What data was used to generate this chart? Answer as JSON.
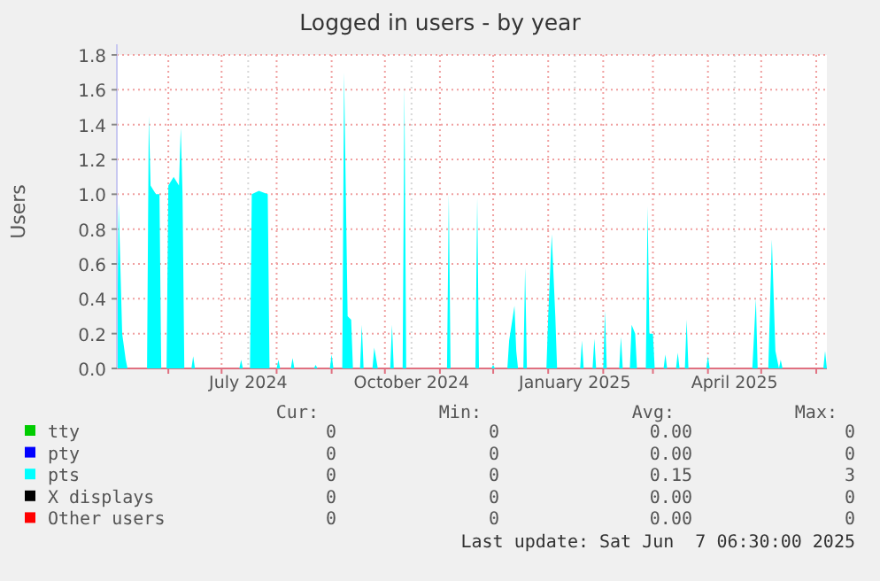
{
  "chart_data": {
    "type": "area",
    "title": "Logged in users - by year",
    "ylabel": "Users",
    "xlim": [
      "2024-05-03",
      "2025-06-07"
    ],
    "xticks": [
      {
        "value": "2024-06-01",
        "label": null
      },
      {
        "value": "2024-07-01",
        "label": null
      },
      {
        "value": "2024-07-16",
        "label": "July 2024"
      },
      {
        "value": "2024-08-01",
        "label": null
      },
      {
        "value": "2024-09-01",
        "label": null
      },
      {
        "value": "2024-10-01",
        "label": null
      },
      {
        "value": "2024-10-16",
        "label": "October 2024"
      },
      {
        "value": "2024-11-01",
        "label": null
      },
      {
        "value": "2024-12-01",
        "label": null
      },
      {
        "value": "2025-01-01",
        "label": null
      },
      {
        "value": "2025-01-16",
        "label": "January 2025"
      },
      {
        "value": "2025-02-01",
        "label": null
      },
      {
        "value": "2025-03-01",
        "label": null
      },
      {
        "value": "2025-04-01",
        "label": null
      },
      {
        "value": "2025-04-16",
        "label": "April 2025"
      },
      {
        "value": "2025-05-01",
        "label": null
      },
      {
        "value": "2025-06-01",
        "label": null
      }
    ],
    "ylim": [
      0,
      1.8
    ],
    "yticks": [
      {
        "value": 0,
        "label": "0.0"
      },
      {
        "value": 0.2,
        "label": "0.2"
      },
      {
        "value": 0.4,
        "label": "0.4"
      },
      {
        "value": 0.6,
        "label": "0.6"
      },
      {
        "value": 0.8,
        "label": "0.8"
      },
      {
        "value": 1,
        "label": "1.0"
      },
      {
        "value": 1.2,
        "label": "1.2"
      },
      {
        "value": 1.4,
        "label": "1.4"
      },
      {
        "value": 1.6,
        "label": "1.6"
      },
      {
        "value": 1.8,
        "label": "1.8"
      }
    ],
    "grid": true,
    "legend": "bottom",
    "series": [
      {
        "name": "tty",
        "color": "#00cc00"
      },
      {
        "name": "pty",
        "color": "#0000ff"
      },
      {
        "name": "pts",
        "color": "#00ffff",
        "x": [
          "2024-05-03",
          "2024-05-04",
          "2024-05-06",
          "2024-05-08",
          "2024-05-09",
          "2024-05-20",
          "2024-05-21",
          "2024-05-22",
          "2024-05-25",
          "2024-05-27",
          "2024-05-28",
          "2024-05-31",
          "2024-06-01",
          "2024-06-04",
          "2024-06-07",
          "2024-06-08",
          "2024-06-09",
          "2024-06-10",
          "2024-06-14",
          "2024-06-15",
          "2024-06-16",
          "2024-07-11",
          "2024-07-12",
          "2024-07-13",
          "2024-07-17",
          "2024-07-18",
          "2024-07-22",
          "2024-07-27",
          "2024-07-28",
          "2024-08-01",
          "2024-08-02",
          "2024-08-03",
          "2024-08-09",
          "2024-08-10",
          "2024-08-11",
          "2024-08-22",
          "2024-08-23",
          "2024-08-24",
          "2024-08-31",
          "2024-09-01",
          "2024-09-02",
          "2024-09-07",
          "2024-09-08",
          "2024-09-10",
          "2024-09-12",
          "2024-09-13",
          "2024-09-14",
          "2024-09-17",
          "2024-09-18",
          "2024-09-19",
          "2024-09-24",
          "2024-09-25",
          "2024-09-27",
          "2024-10-04",
          "2024-10-05",
          "2024-10-06",
          "2024-10-11",
          "2024-10-12",
          "2024-10-13",
          "2024-11-05",
          "2024-11-06",
          "2024-11-07",
          "2024-11-21",
          "2024-11-22",
          "2024-11-23",
          "2024-11-30",
          "2024-12-01",
          "2024-12-02",
          "2024-12-09",
          "2024-12-10",
          "2024-12-13",
          "2024-12-14",
          "2024-12-15",
          "2024-12-18",
          "2024-12-19",
          "2024-12-20",
          "2024-12-31",
          "2025-01-01",
          "2025-01-03",
          "2025-01-05",
          "2025-01-06",
          "2025-01-19",
          "2025-01-20",
          "2025-01-21",
          "2025-01-26",
          "2025-01-27",
          "2025-01-28",
          "2025-02-01",
          "2025-02-02",
          "2025-02-03",
          "2025-02-10",
          "2025-02-11",
          "2025-02-12",
          "2025-02-16",
          "2025-02-17",
          "2025-02-19",
          "2025-02-20",
          "2025-02-25",
          "2025-02-26",
          "2025-02-27",
          "2025-03-01",
          "2025-03-02",
          "2025-03-07",
          "2025-03-08",
          "2025-03-09",
          "2025-03-14",
          "2025-03-15",
          "2025-03-16",
          "2025-03-19",
          "2025-03-20",
          "2025-03-21",
          "2025-03-31",
          "2025-04-01",
          "2025-04-02",
          "2025-04-26",
          "2025-04-28",
          "2025-04-29",
          "2025-05-05",
          "2025-05-07",
          "2025-05-09",
          "2025-05-11",
          "2025-05-12",
          "2025-05-13",
          "2025-06-05",
          "2025-06-06",
          "2025-06-07"
        ],
        "values": [
          0,
          0.95,
          0.2,
          0.05,
          0,
          0,
          1.45,
          1.05,
          1.0,
          1.0,
          0,
          0,
          1.05,
          1.1,
          1.05,
          1.38,
          1.0,
          0,
          0,
          0.07,
          0,
          0,
          0.05,
          0,
          0,
          1.0,
          1.02,
          1.0,
          0,
          0,
          0.05,
          0,
          0,
          0.06,
          0,
          0,
          0.02,
          0,
          0,
          0.08,
          0,
          0,
          1.7,
          0.3,
          0.28,
          0,
          0,
          0,
          0.25,
          0,
          0,
          0.12,
          0,
          0,
          0.25,
          0,
          0,
          1.62,
          0,
          0,
          1.0,
          0,
          0,
          0.98,
          0,
          0,
          0.02,
          0,
          0,
          0.16,
          0.36,
          0.1,
          0,
          0,
          0.58,
          0,
          0,
          0.3,
          0.77,
          0.3,
          0,
          0,
          0.16,
          0,
          0,
          0.17,
          0,
          0,
          0.33,
          0,
          0,
          0.18,
          0,
          0,
          0.25,
          0.2,
          0,
          0,
          0.93,
          0.2,
          0.2,
          0,
          0,
          0.08,
          0,
          0,
          0.09,
          0,
          0,
          0.28,
          0,
          0,
          0.07,
          0,
          0,
          0.4,
          0,
          0,
          0.74,
          0.1,
          0,
          0.05,
          0,
          0,
          0.1,
          0
        ]
      },
      {
        "name": "X displays",
        "color": "#000000"
      },
      {
        "name": "Other users",
        "color": "#ff0000"
      }
    ],
    "annotations": [
      "Cur:",
      "Min:",
      "Avg:",
      "Max:",
      "0",
      "0",
      "0.00",
      "0",
      "0",
      "0",
      "0.00",
      "0",
      "0",
      "0",
      "0.15",
      "3",
      "0",
      "0",
      "0.00",
      "0",
      "0",
      "0",
      "0.00",
      "0",
      "Last update: Sat Jun  7 06:30:00 2025"
    ]
  }
}
